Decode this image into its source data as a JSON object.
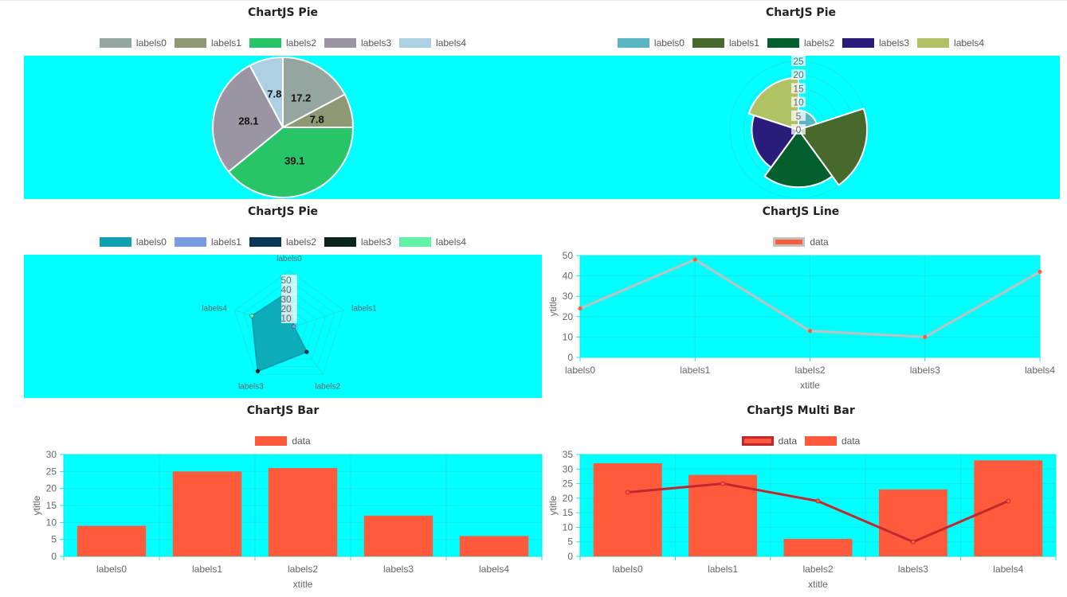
{
  "colors": {
    "plot_bg": "#00ffff",
    "grid": "#19e6e6",
    "bar": "#ff5a3c",
    "line_gray": "#c0c0c0",
    "line_red": "#c1272d"
  },
  "chart_data": [
    {
      "type": "pie",
      "title": "ChartJS Pie",
      "categories": [
        "labels0",
        "labels1",
        "labels2",
        "labels3",
        "labels4"
      ],
      "values": [
        17.2,
        7.8,
        39.1,
        28.1,
        7.8
      ],
      "colors": [
        "#94a69f",
        "#8e9872",
        "#27c568",
        "#9a94a3",
        "#acd0e2"
      ],
      "legend": "top"
    },
    {
      "type": "polarArea",
      "title": "ChartJS Pie",
      "categories": [
        "labels0",
        "labels1",
        "labels2",
        "labels3",
        "labels4"
      ],
      "values": [
        7,
        25,
        21,
        17,
        19
      ],
      "colors": [
        "#5ab6c3",
        "#476a2c",
        "#045f2f",
        "#2a1c7a",
        "#b1c264"
      ],
      "r_ticks": [
        "0",
        "5",
        "10",
        "15",
        "20",
        "25"
      ],
      "rlim": [
        0,
        25
      ],
      "legend": "top"
    },
    {
      "type": "radar",
      "title": "ChartJS Pie",
      "categories": [
        "labels0",
        "labels1",
        "labels2",
        "labels3",
        "labels4"
      ],
      "values": [
        38,
        5,
        31,
        56,
        41
      ],
      "colors": [
        "#0f9fb0",
        "#7a9be1",
        "#0a3856",
        "#09261c",
        "#62f3a6"
      ],
      "r_ticks": [
        "0",
        "10",
        "20",
        "30",
        "40",
        "50"
      ],
      "rlim": [
        0,
        60
      ],
      "legend": "top"
    },
    {
      "type": "line",
      "title": "ChartJS Line",
      "categories": [
        "labels0",
        "labels1",
        "labels2",
        "labels3",
        "labels4"
      ],
      "series": [
        {
          "name": "data",
          "values": [
            24,
            48,
            13,
            10,
            42
          ]
        }
      ],
      "xlabel": "xtitle",
      "ylabel": "ytitle",
      "ylim": [
        0,
        50
      ],
      "y_ticks": [
        "0",
        "10",
        "20",
        "30",
        "40",
        "50"
      ],
      "legend": "top"
    },
    {
      "type": "bar",
      "title": "ChartJS Bar",
      "categories": [
        "labels0",
        "labels1",
        "labels2",
        "labels3",
        "labels4"
      ],
      "series": [
        {
          "name": "data",
          "values": [
            9,
            25,
            26,
            12,
            6
          ]
        }
      ],
      "xlabel": "xtitle",
      "ylabel": "ytitle",
      "ylim": [
        0,
        30
      ],
      "y_ticks": [
        "0",
        "5",
        "10",
        "15",
        "20",
        "25",
        "30"
      ],
      "legend": "top"
    },
    {
      "type": "bar",
      "title": "ChartJS Multi Bar",
      "categories": [
        "labels0",
        "labels1",
        "labels2",
        "labels3",
        "labels4"
      ],
      "series": [
        {
          "name": "data",
          "type": "line",
          "values": [
            22,
            25,
            19,
            5,
            19
          ]
        },
        {
          "name": "data",
          "type": "bar",
          "values": [
            32,
            28,
            6,
            23,
            33
          ]
        }
      ],
      "xlabel": "xtitle",
      "ylabel": "ytitle",
      "ylim": [
        0,
        35
      ],
      "y_ticks": [
        "0",
        "5",
        "10",
        "15",
        "20",
        "25",
        "30",
        "35"
      ],
      "legend": "top"
    }
  ]
}
